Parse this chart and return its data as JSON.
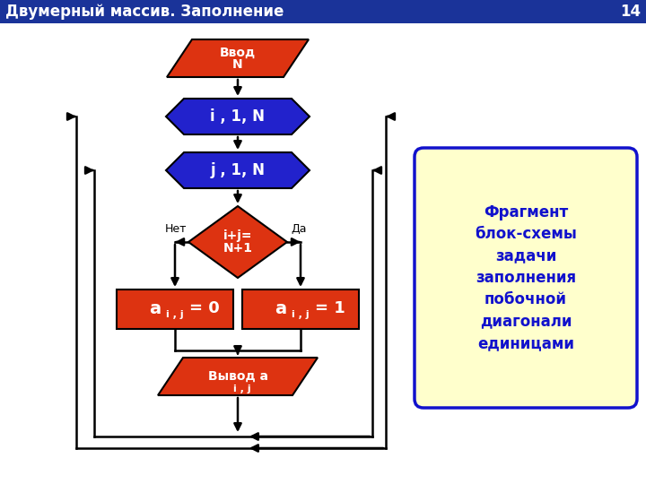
{
  "title": "Двумерный массив. Заполнение",
  "slide_number": "14",
  "title_bg": "#1a3399",
  "title_fg": "#ffffff",
  "bg_color": "#ffffff",
  "red_color": "#dd3311",
  "blue_color": "#2222cc",
  "yellow_box_bg": "#ffffcc",
  "blue_text": "#1111cc",
  "comment_text": "Фрагмент\nблок-схемы\nзадачи\nзаполнения\nпобочной\nдиагонали\nединицами"
}
